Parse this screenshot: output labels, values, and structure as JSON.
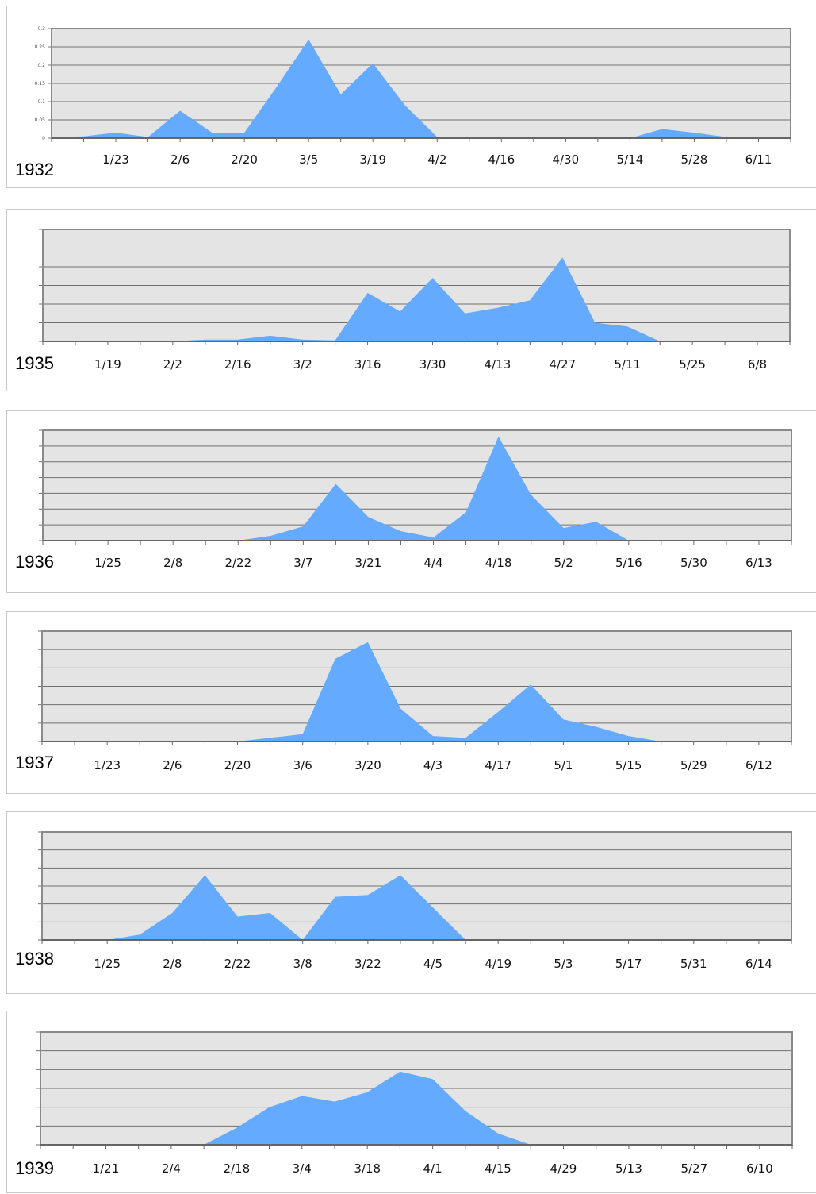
{
  "colors": {
    "area": "#64aaff",
    "plot_bg": "#e4e4e4",
    "grid": "#707070",
    "frame": "#8a8a8a"
  },
  "chart_data": [
    {
      "type": "area",
      "year_label": "1932",
      "ylim": [
        0,
        0.3
      ],
      "y_ticks": [
        "0",
        "0.05",
        "0.1",
        "0.15",
        "0.2",
        "0.25",
        "0.3"
      ],
      "x_ticks": [
        "1/23",
        "2/6",
        "2/20",
        "3/5",
        "3/19",
        "4/2",
        "4/16",
        "4/30",
        "5/14",
        "5/28",
        "6/11"
      ],
      "x": [
        "1/9",
        "1/16",
        "1/23",
        "1/30",
        "2/6",
        "2/13",
        "2/20",
        "2/27",
        "3/5",
        "3/12",
        "3/19",
        "3/26",
        "4/2",
        "4/9",
        "4/16",
        "4/23",
        "4/30",
        "5/7",
        "5/14",
        "5/21",
        "5/28",
        "6/4",
        "6/11",
        "6/18"
      ],
      "values": [
        0.003,
        0.005,
        0.015,
        0.003,
        0.075,
        0.015,
        0.015,
        0.14,
        0.27,
        0.12,
        0.205,
        0.09,
        0.003,
        0,
        0,
        0,
        0,
        0,
        0,
        0.025,
        0.015,
        0.003,
        0,
        0
      ]
    },
    {
      "type": "area",
      "year_label": "1935",
      "ylim": [
        0,
        6
      ],
      "y_ticks": [
        "",
        "",
        "",
        "",
        "",
        "",
        ""
      ],
      "x_ticks": [
        "1/19",
        "2/2",
        "2/16",
        "3/2",
        "3/16",
        "3/30",
        "4/13",
        "4/27",
        "5/11",
        "5/25",
        "6/8"
      ],
      "x": [
        "1/5",
        "1/12",
        "1/19",
        "1/26",
        "2/2",
        "2/9",
        "2/16",
        "2/23",
        "3/2",
        "3/9",
        "3/16",
        "3/23",
        "3/30",
        "4/6",
        "4/13",
        "4/20",
        "4/27",
        "5/4",
        "5/11",
        "5/18",
        "5/25",
        "6/1",
        "6/8",
        "6/15"
      ],
      "values": [
        0,
        0,
        0,
        0,
        0,
        0.1,
        0.1,
        0.3,
        0.1,
        0.05,
        2.6,
        1.6,
        3.4,
        1.5,
        1.8,
        2.2,
        4.5,
        1.0,
        0.8,
        0,
        0,
        0,
        0,
        0
      ]
    },
    {
      "type": "area",
      "year_label": "1936",
      "ylim": [
        0,
        7
      ],
      "y_ticks": [
        "",
        "",
        "",
        "",
        "",
        "",
        "",
        ""
      ],
      "x_ticks": [
        "1/25",
        "2/8",
        "2/22",
        "3/7",
        "3/21",
        "4/4",
        "4/18",
        "5/2",
        "5/16",
        "5/30",
        "6/13"
      ],
      "x": [
        "1/11",
        "1/18",
        "1/25",
        "2/1",
        "2/8",
        "2/15",
        "2/22",
        "2/29",
        "3/7",
        "3/14",
        "3/21",
        "3/28",
        "4/4",
        "4/11",
        "4/18",
        "4/25",
        "5/2",
        "5/9",
        "5/16",
        "5/23",
        "5/30",
        "6/6",
        "6/13",
        "6/20"
      ],
      "values": [
        0,
        0,
        0,
        0,
        0,
        0,
        0,
        0.3,
        0.9,
        3.6,
        1.5,
        0.6,
        0.2,
        1.8,
        6.6,
        2.9,
        0.8,
        1.2,
        0,
        0,
        0,
        0,
        0,
        0
      ]
    },
    {
      "type": "area",
      "year_label": "1937",
      "ylim": [
        0,
        6
      ],
      "y_ticks": [
        "",
        "",
        "",
        "",
        "",
        "",
        ""
      ],
      "x_ticks": [
        "1/23",
        "2/6",
        "2/20",
        "3/6",
        "3/20",
        "4/3",
        "4/17",
        "5/1",
        "5/15",
        "5/29",
        "6/12"
      ],
      "x": [
        "1/9",
        "1/16",
        "1/23",
        "1/30",
        "2/6",
        "2/13",
        "2/20",
        "2/27",
        "3/6",
        "3/13",
        "3/20",
        "3/27",
        "4/3",
        "4/10",
        "4/17",
        "4/24",
        "5/1",
        "5/8",
        "5/15",
        "5/22",
        "5/29",
        "6/5",
        "6/12",
        "6/19"
      ],
      "values": [
        0,
        0,
        0,
        0,
        0,
        0,
        0,
        0.2,
        0.4,
        4.5,
        5.4,
        1.8,
        0.3,
        0.2,
        1.6,
        3.1,
        1.2,
        0.8,
        0.3,
        0,
        0,
        0,
        0,
        0
      ]
    },
    {
      "type": "area",
      "year_label": "1938",
      "ylim": [
        0,
        6
      ],
      "y_ticks": [
        "",
        "",
        "",
        "",
        "",
        "",
        ""
      ],
      "x_ticks": [
        "1/25",
        "2/8",
        "2/22",
        "3/8",
        "3/22",
        "4/5",
        "4/19",
        "5/3",
        "5/17",
        "5/31",
        "6/14"
      ],
      "x": [
        "1/11",
        "1/18",
        "1/25",
        "2/1",
        "2/8",
        "2/15",
        "2/22",
        "3/1",
        "3/8",
        "3/15",
        "3/22",
        "3/29",
        "4/5",
        "4/12",
        "4/19",
        "4/26",
        "5/3",
        "5/10",
        "5/17",
        "5/24",
        "5/31",
        "6/7",
        "6/14",
        "6/21"
      ],
      "values": [
        0,
        0,
        0,
        0.3,
        1.5,
        3.6,
        1.3,
        1.5,
        0,
        2.4,
        2.5,
        3.6,
        1.8,
        0,
        0,
        0,
        0,
        0,
        0,
        0,
        0,
        0,
        0,
        0
      ]
    },
    {
      "type": "area",
      "year_label": "1939",
      "ylim": [
        0,
        6
      ],
      "y_ticks": [
        "",
        "",
        "",
        "",
        "",
        "",
        ""
      ],
      "x_ticks": [
        "1/21",
        "2/4",
        "2/18",
        "3/4",
        "3/18",
        "4/1",
        "4/15",
        "4/29",
        "5/13",
        "5/27",
        "6/10"
      ],
      "x": [
        "1/7",
        "1/14",
        "1/21",
        "1/28",
        "2/4",
        "2/11",
        "2/18",
        "2/25",
        "3/4",
        "3/11",
        "3/18",
        "3/25",
        "4/1",
        "4/8",
        "4/15",
        "4/22",
        "4/29",
        "5/6",
        "5/13",
        "5/20",
        "5/27",
        "6/3",
        "6/10",
        "6/17"
      ],
      "values": [
        0,
        0,
        0,
        0,
        0,
        0,
        0.9,
        2.0,
        2.6,
        2.3,
        2.8,
        3.9,
        3.5,
        1.8,
        0.6,
        0,
        0,
        0,
        0,
        0,
        0,
        0,
        0,
        0
      ]
    }
  ]
}
